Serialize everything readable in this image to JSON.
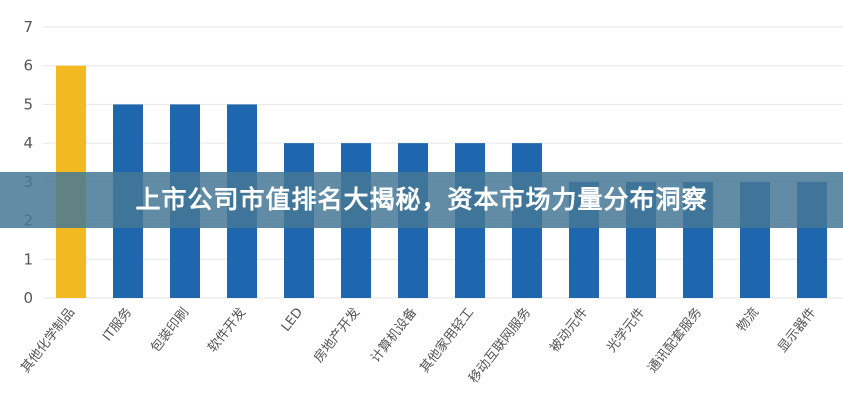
{
  "banner": {
    "title": "上市公司市值排名大揭秘，资本市场力量分布洞察"
  },
  "colors": {
    "highlight_bar": "#F2B920",
    "bar": "#1E66AD",
    "grid": "#E6E6E6",
    "banner_bg": "#46789699"
  },
  "chart_data": {
    "type": "bar",
    "title": "",
    "xlabel": "",
    "ylabel": "",
    "ylim": [
      0,
      7
    ],
    "yticks": [
      0,
      1,
      2,
      3,
      4,
      5,
      6,
      7
    ],
    "grid": true,
    "categories": [
      "其他化学制品",
      "IT服务",
      "包装印刷",
      "软件开发",
      "LED",
      "房地产开发",
      "计算机设备",
      "其他家用轻工",
      "移动互联网服务",
      "被动元件",
      "光学元件",
      "通讯配套服务",
      "物流",
      "显示器件"
    ],
    "values": [
      6,
      5,
      5,
      5,
      4,
      4,
      4,
      4,
      4,
      3,
      3,
      3,
      3,
      3
    ],
    "highlight_index": 0
  }
}
